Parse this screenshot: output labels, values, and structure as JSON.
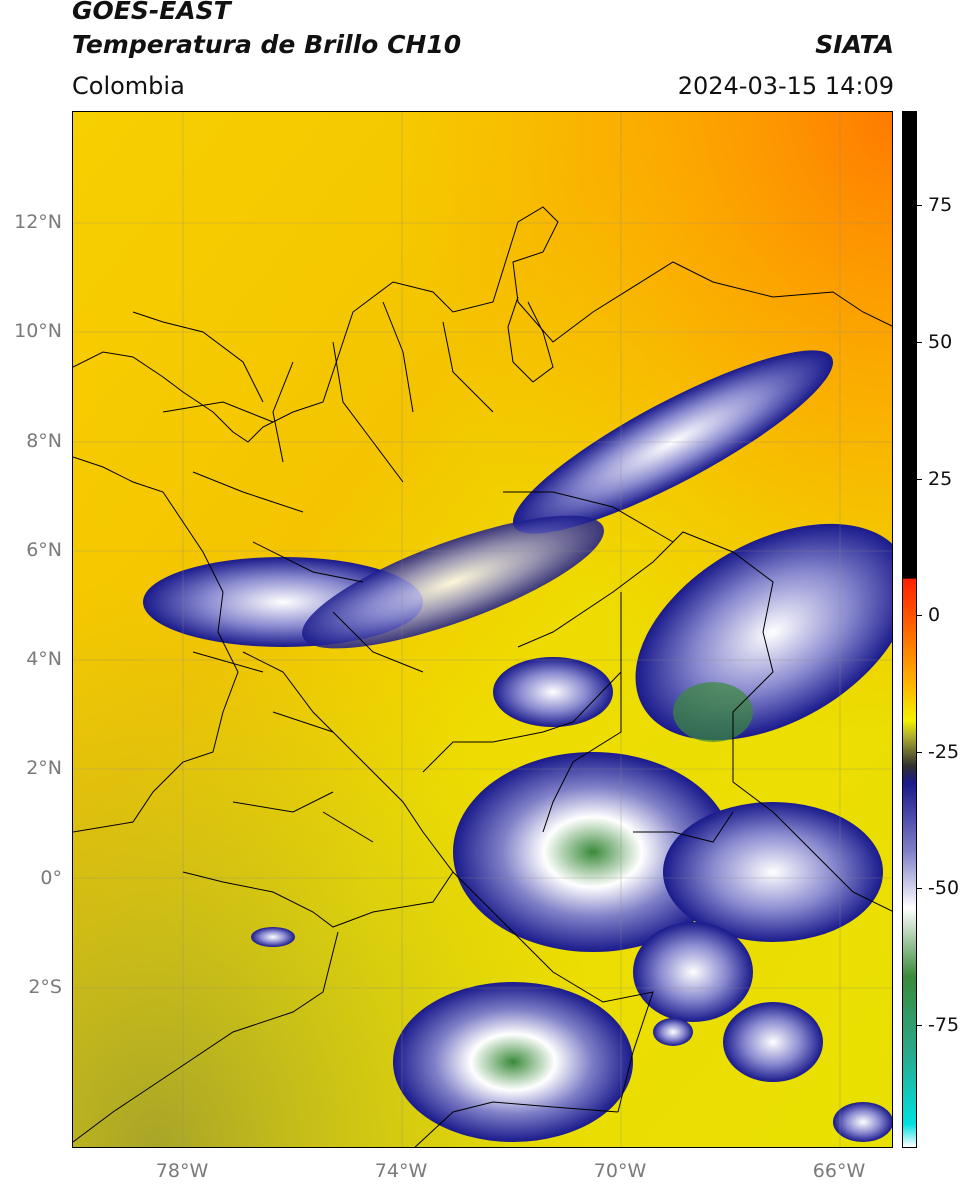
{
  "header": {
    "title_line1": "GOES-EAST",
    "title_line2": "Temperatura de Brillo CH10",
    "region": "Colombia",
    "organization": "SIATA",
    "datetime": "2024-03-15 14:09"
  },
  "axes": {
    "lat_labels": [
      "12°N",
      "10°N",
      "8°N",
      "6°N",
      "4°N",
      "2°N",
      "0°",
      "2°S"
    ],
    "lon_labels": [
      "78°W",
      "74°W",
      "70°W",
      "66°W"
    ]
  },
  "colorbar": {
    "tick_labels": [
      "75",
      "50",
      "25",
      "0",
      "-25",
      "-50",
      "-75"
    ],
    "stops": [
      {
        "value": 90,
        "color": "#000000"
      },
      {
        "value": 8,
        "color": "#000000"
      },
      {
        "value": 7.9,
        "color": "#ff2000"
      },
      {
        "value": -10,
        "color": "#ffb000"
      },
      {
        "value": -17,
        "color": "#f2f200"
      },
      {
        "value": -20,
        "color": "#aaaa30"
      },
      {
        "value": -25,
        "color": "#303030"
      },
      {
        "value": -28,
        "color": "#1a1a8c"
      },
      {
        "value": -40,
        "color": "#8080c8"
      },
      {
        "value": -50,
        "color": "#ffffff"
      },
      {
        "value": -62,
        "color": "#3a8a3a"
      },
      {
        "value": -75,
        "color": "#2aa88a"
      },
      {
        "value": -88,
        "color": "#00e0e0"
      },
      {
        "value": -92,
        "color": "#ffffff"
      }
    ]
  }
}
